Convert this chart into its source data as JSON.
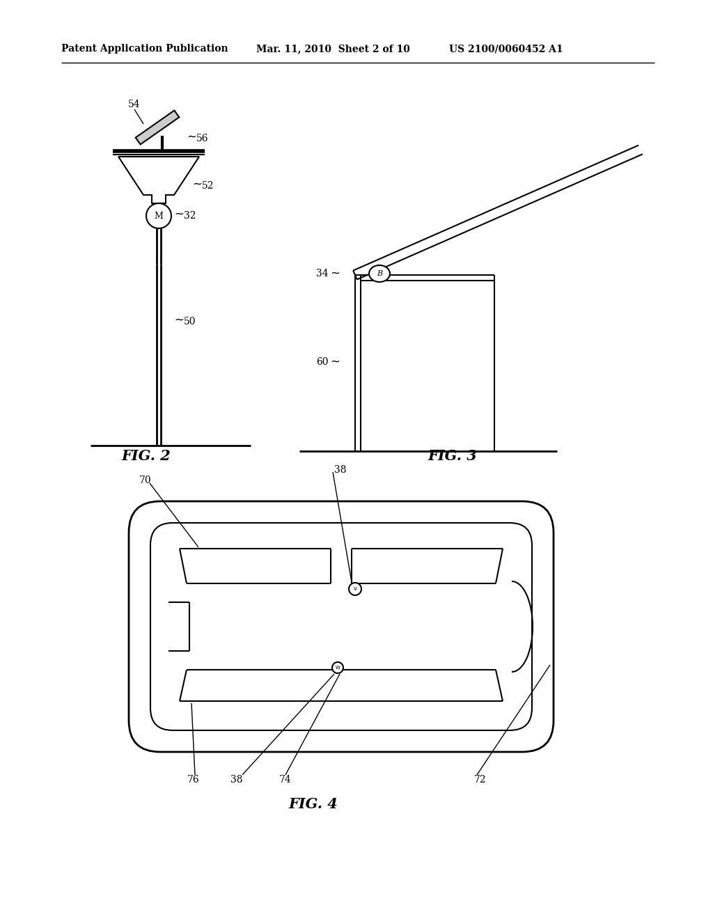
{
  "bg_color": "#ffffff",
  "text_color": "#000000",
  "line_color": "#000000",
  "header_left": "Patent Application Publication",
  "header_mid": "Mar. 11, 2010  Sheet 2 of 10",
  "header_right": "US 2100/0060452 A1",
  "fig2_label": "FIG. 2",
  "fig3_label": "FIG. 3",
  "fig4_label": "FIG. 4"
}
